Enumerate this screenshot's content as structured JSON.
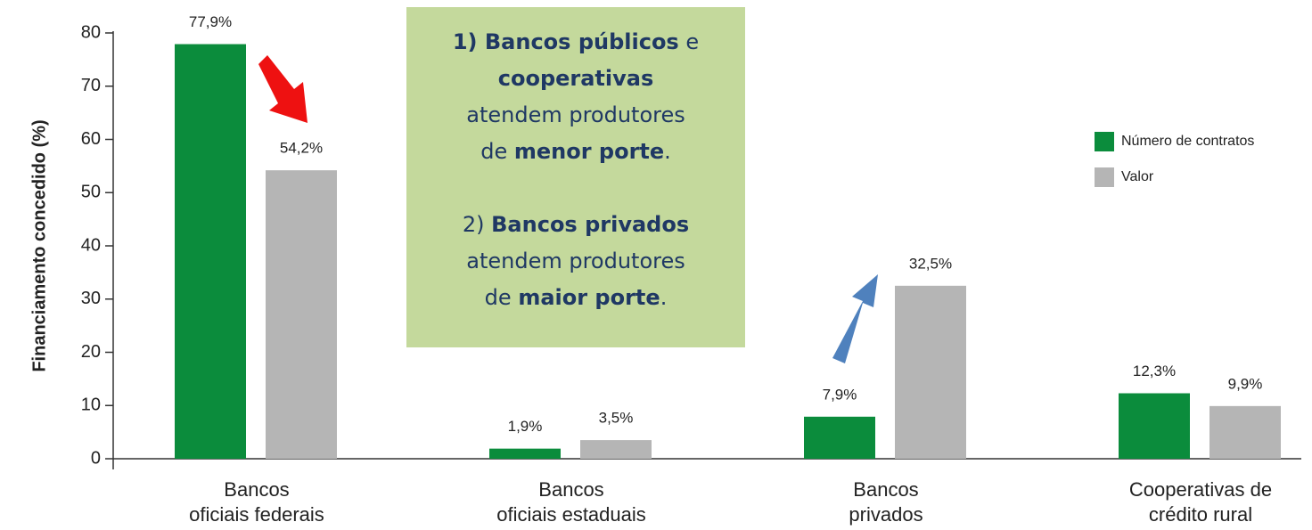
{
  "chart_data": {
    "type": "bar",
    "ylabel": "Financiamento concedido (%)",
    "categories": [
      [
        "Bancos",
        "oficiais federais"
      ],
      [
        "Bancos",
        "oficiais estaduais"
      ],
      [
        "Bancos",
        "privados"
      ],
      [
        "Cooperativas de",
        "crédito rural"
      ]
    ],
    "series": [
      {
        "name": "Número de contratos",
        "color": "#0b8c3c",
        "values": [
          77.9,
          1.9,
          7.9,
          12.3
        ],
        "value_labels": [
          "77,9%",
          "1,9%",
          "7,9%",
          "12,3%"
        ]
      },
      {
        "name": "Valor",
        "color": "#b5b5b5",
        "values": [
          54.2,
          3.5,
          32.5,
          9.9
        ],
        "value_labels": [
          "54,2%",
          "3,5%",
          "32,5%",
          "9,9%"
        ]
      }
    ],
    "ylim": [
      0,
      80
    ],
    "yticks": [
      0,
      10,
      20,
      30,
      40,
      50,
      60,
      70,
      80
    ],
    "legend": "right",
    "annotation": [
      [
        {
          "text": "1) Bancos públicos",
          "bold": true
        },
        {
          "text": " e",
          "bold": false
        }
      ],
      [
        {
          "text": "cooperativas",
          "bold": true
        }
      ],
      [
        {
          "text": "atendem produtores",
          "bold": false
        }
      ],
      [
        {
          "text": "de ",
          "bold": false
        },
        {
          "text": "menor porte",
          "bold": true
        },
        {
          "text": ".",
          "bold": false
        }
      ],
      [],
      [
        {
          "text": "2) ",
          "bold": false
        },
        {
          "text": "Bancos privados",
          "bold": true
        }
      ],
      [
        {
          "text": "atendem produtores",
          "bold": false
        }
      ],
      [
        {
          "text": "de ",
          "bold": false
        },
        {
          "text": "maior porte",
          "bold": true
        },
        {
          "text": ".",
          "bold": false
        }
      ]
    ]
  }
}
